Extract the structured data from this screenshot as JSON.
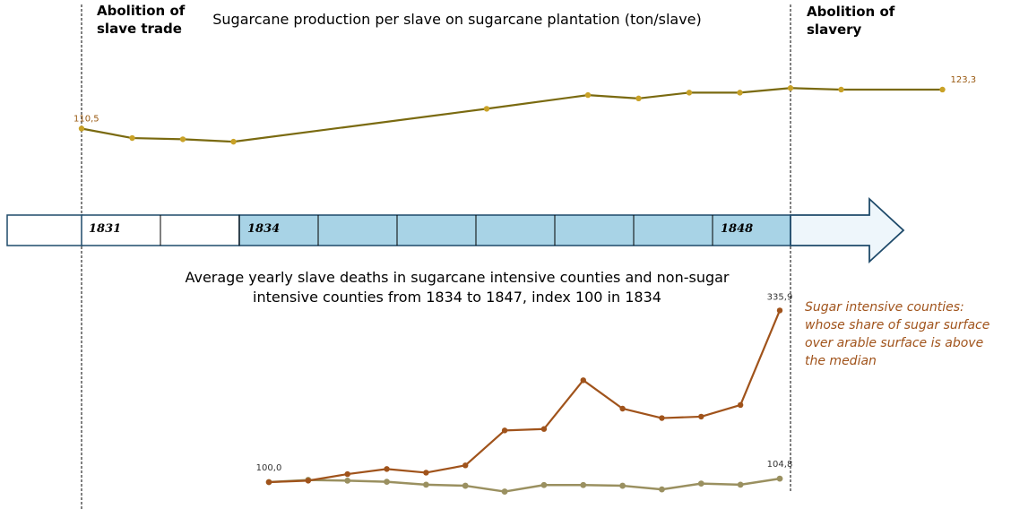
{
  "events": {
    "left_label_line1": "Abolition of",
    "left_label_line2": "slave trade",
    "right_label_line1": "Abolition of",
    "right_label_line2": "slavery"
  },
  "timeline": {
    "labels": [
      "1831",
      "1834",
      "1848"
    ]
  },
  "note": {
    "lines": [
      "Sugar intensive counties:",
      "whose share of sugar surface",
      "over arable surface is above",
      "the median"
    ]
  },
  "colors": {
    "top_line": "#7a6a10",
    "top_marker": "#c9a227",
    "top_labels": "#9a5a12",
    "sugar_series": "#a0531b",
    "non_sugar_series": "#9a9060",
    "timeline_fill": "#a8d3e6",
    "timeline_stroke": "#1e4a6a"
  },
  "chart_data": [
    {
      "type": "line",
      "title": "Sugarcane production per slave on sugarcane plantation (ton/slave)",
      "x": [
        1831,
        1832,
        1833,
        1834,
        1835,
        1836,
        1837,
        1838,
        1839,
        1840,
        1841,
        1842,
        1843,
        1844,
        1845,
        1846,
        1847,
        1848
      ],
      "series": [
        {
          "values": [
            110.5,
            107.4,
            107.0,
            106.2,
            null,
            null,
            null,
            null,
            117.0,
            null,
            121.5,
            120.4,
            122.3,
            122.3,
            123.8,
            123.3,
            null,
            123.3
          ],
          "labels": {
            "first": "110,5",
            "last": "123,3"
          }
        }
      ]
    },
    {
      "type": "line",
      "title": "Average yearly slave deaths in sugarcane intensive counties and non-sugar intensive counties from 1834 to 1847, index 100 in 1834",
      "x": [
        1834,
        1835,
        1836,
        1837,
        1838,
        1839,
        1840,
        1841,
        1842,
        1843,
        1844,
        1845,
        1846,
        1847
      ],
      "series": [
        {
          "name": "Sugar intensive counties",
          "values": [
            100.0,
            102.0,
            111.0,
            118.0,
            113.0,
            123.0,
            171.0,
            173.0,
            240.0,
            201.0,
            188.0,
            190.0,
            206.0,
            335.9
          ],
          "labels": {
            "last": "335,9"
          }
        },
        {
          "values": [
            100.0,
            103.0,
            102.0,
            100.5,
            96.5,
            95.0,
            87.0,
            96.0,
            96.0,
            95.0,
            90.0,
            98.0,
            96.5,
            104.8
          ],
          "labels": {
            "first": "100,0",
            "last": "104,8"
          }
        }
      ]
    }
  ]
}
